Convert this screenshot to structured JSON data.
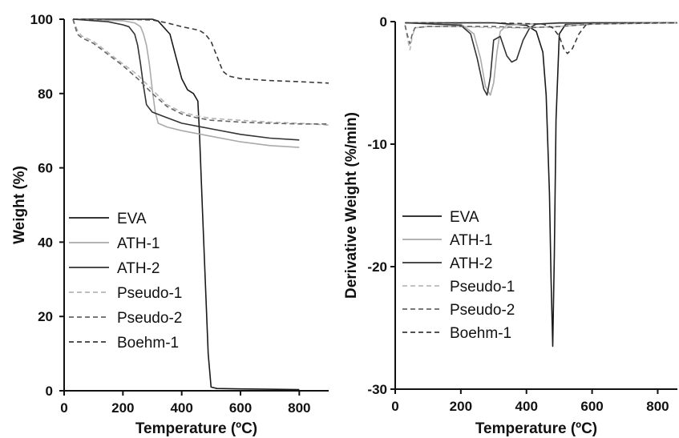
{
  "chart_data": [
    {
      "type": "line",
      "xlabel": "Temperature (ºC)",
      "ylabel": "Weight (%)",
      "xlim": [
        0,
        900
      ],
      "ylim": [
        0,
        100
      ],
      "xticks": [
        0,
        200,
        400,
        600,
        800
      ],
      "yticks": [
        0,
        20,
        40,
        60,
        80,
        100
      ],
      "grid": false,
      "legend": "bottom-left",
      "series": [
        {
          "name": "EVA",
          "color": "#1a1a1a",
          "dash": "solid",
          "x": [
            30,
            300,
            320,
            360,
            380,
            400,
            420,
            440,
            455,
            460,
            470,
            480,
            490,
            500,
            520,
            600,
            700,
            800
          ],
          "y": [
            100,
            100,
            99.5,
            96,
            90,
            84,
            81,
            80,
            78,
            70,
            50,
            30,
            10,
            1,
            0.6,
            0.5,
            0.4,
            0.3
          ]
        },
        {
          "name": "ATH-1",
          "color": "#aaaaaa",
          "dash": "solid",
          "x": [
            30,
            200,
            240,
            260,
            270,
            280,
            290,
            300,
            310,
            320,
            350,
            400,
            500,
            600,
            700,
            800
          ],
          "y": [
            100,
            99.6,
            99,
            98,
            96,
            93,
            88,
            81,
            75,
            72,
            71,
            70,
            68.5,
            67,
            66,
            65.5
          ]
        },
        {
          "name": "ATH-2",
          "color": "#333333",
          "dash": "solid",
          "x": [
            30,
            150,
            200,
            220,
            240,
            250,
            260,
            270,
            280,
            290,
            300,
            350,
            400,
            500,
            600,
            700,
            800
          ],
          "y": [
            100,
            99.3,
            98.5,
            98,
            96,
            93,
            88,
            82,
            77,
            76,
            75,
            73.5,
            72,
            70.5,
            69,
            68,
            67.5
          ]
        },
        {
          "name": "Pseudo-1",
          "color": "#b5b5b5",
          "dash": "dashed",
          "x": [
            30,
            45,
            60,
            100,
            150,
            200,
            250,
            300,
            350,
            400,
            450,
            500,
            600,
            700,
            800,
            900
          ],
          "y": [
            100,
            97,
            95.5,
            94,
            91,
            88,
            85,
            81,
            77,
            75,
            74,
            73.3,
            72.8,
            72.3,
            72,
            71.5
          ]
        },
        {
          "name": "Pseudo-2",
          "color": "#666666",
          "dash": "dashed",
          "x": [
            30,
            45,
            60,
            100,
            150,
            200,
            250,
            300,
            350,
            400,
            450,
            500,
            600,
            700,
            800,
            900
          ],
          "y": [
            100,
            96,
            95,
            93.5,
            90.5,
            87.5,
            84,
            80,
            76.5,
            74.5,
            73.5,
            72.8,
            72.3,
            72,
            71.8,
            71.8
          ]
        },
        {
          "name": "Boehm-1",
          "color": "#3a3a3a",
          "dash": "dashed",
          "x": [
            30,
            200,
            300,
            350,
            400,
            430,
            460,
            480,
            500,
            520,
            540,
            560,
            600,
            700,
            800,
            900
          ],
          "y": [
            100,
            100,
            99.8,
            99,
            98,
            97.5,
            97,
            96,
            94,
            90,
            86,
            84.7,
            84,
            83.5,
            83.2,
            82.8
          ]
        }
      ]
    },
    {
      "type": "line",
      "xlabel": "Temperature (ºC)",
      "ylabel": "Derivative Weight (%/min)",
      "xlim": [
        0,
        860
      ],
      "ylim": [
        -30,
        0
      ],
      "xticks": [
        0,
        200,
        400,
        600,
        800
      ],
      "yticks": [
        0,
        -10,
        -20,
        -30
      ],
      "grid": false,
      "legend": "bottom-left",
      "series": [
        {
          "name": "EVA",
          "color": "#1a1a1a",
          "dash": "solid",
          "x": [
            30,
            300,
            350,
            400,
            430,
            450,
            460,
            470,
            475,
            480,
            485,
            490,
            500,
            520,
            600,
            860
          ],
          "y": [
            -0.1,
            -0.1,
            -0.2,
            -0.3,
            -0.8,
            -2.5,
            -6,
            -14,
            -21,
            -26.5,
            -19,
            -8,
            -1,
            -0.2,
            -0.1,
            -0.1
          ]
        },
        {
          "name": "ATH-1",
          "color": "#aaaaaa",
          "dash": "solid",
          "x": [
            30,
            200,
            240,
            260,
            275,
            290,
            300,
            310,
            320,
            340,
            400,
            600,
            860
          ],
          "y": [
            -0.1,
            -0.2,
            -1,
            -3,
            -5.3,
            -6,
            -5,
            -2.5,
            -0.8,
            -0.3,
            -0.2,
            -0.1,
            -0.1
          ]
        },
        {
          "name": "ATH-2",
          "color": "#333333",
          "dash": "solid",
          "x": [
            30,
            200,
            230,
            250,
            270,
            280,
            290,
            300,
            320,
            340,
            355,
            370,
            390,
            410,
            430,
            500,
            600,
            860
          ],
          "y": [
            -0.1,
            -0.3,
            -1,
            -3,
            -5.5,
            -6,
            -4.5,
            -1.5,
            -1.2,
            -2.8,
            -3.3,
            -3.1,
            -1.5,
            -0.5,
            -0.2,
            -0.1,
            -0.1,
            -0.1
          ]
        },
        {
          "name": "Pseudo-1",
          "color": "#bbbbbb",
          "dash": "dashed",
          "x": [
            30,
            38,
            45,
            52,
            60,
            100,
            200,
            300,
            400,
            500,
            600,
            860
          ],
          "y": [
            -0.3,
            -1.5,
            -2.3,
            -1.2,
            -0.5,
            -0.4,
            -0.4,
            -0.5,
            -0.5,
            -0.4,
            -0.2,
            -0.1
          ]
        },
        {
          "name": "Pseudo-2",
          "color": "#666666",
          "dash": "dashed",
          "x": [
            30,
            38,
            45,
            52,
            60,
            100,
            200,
            300,
            400,
            500,
            600,
            860
          ],
          "y": [
            -0.3,
            -1.2,
            -1.8,
            -1,
            -0.5,
            -0.4,
            -0.4,
            -0.4,
            -0.5,
            -0.4,
            -0.2,
            -0.1
          ]
        },
        {
          "name": "Boehm-1",
          "color": "#3a3a3a",
          "dash": "dashed",
          "x": [
            30,
            300,
            450,
            480,
            500,
            515,
            525,
            540,
            560,
            580,
            600,
            860
          ],
          "y": [
            -0.1,
            -0.1,
            -0.2,
            -0.5,
            -1.2,
            -2.3,
            -2.6,
            -2.2,
            -1,
            -0.3,
            -0.1,
            -0.1
          ]
        }
      ]
    }
  ]
}
